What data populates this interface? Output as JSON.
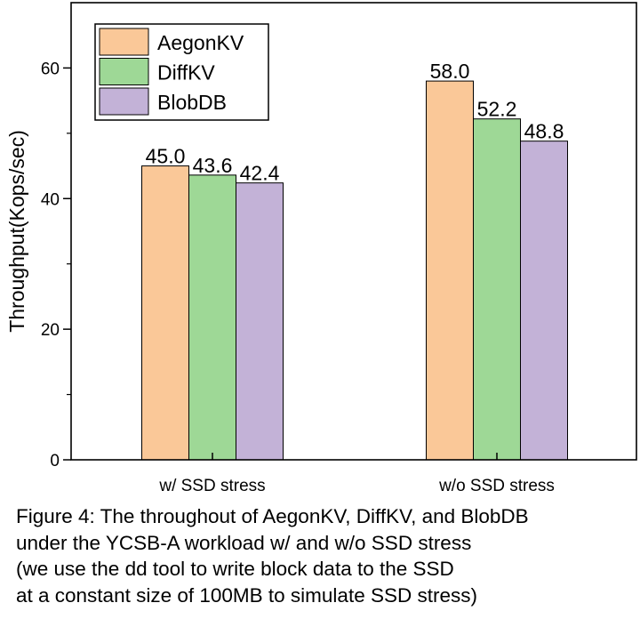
{
  "chart_data": {
    "type": "bar",
    "categories": [
      "w/ SSD stress",
      "w/o SSD stress"
    ],
    "series": [
      {
        "name": "AegonKV",
        "values": [
          45.0,
          58.0
        ],
        "color": "#fac898"
      },
      {
        "name": "DiffKV",
        "values": [
          43.6,
          52.2
        ],
        "color": "#9ed896"
      },
      {
        "name": "BlobDB",
        "values": [
          42.4,
          48.8
        ],
        "color": "#c3b2d7"
      }
    ],
    "data_labels": [
      [
        "45.0",
        "43.6",
        "42.4"
      ],
      [
        "58.0",
        "52.2",
        "48.8"
      ]
    ],
    "title": "",
    "xlabel": "",
    "ylabel": "Throughput(Kops/sec)",
    "ylim": [
      0,
      70
    ],
    "yticks": [
      0,
      20,
      40,
      60
    ],
    "legend_position": "top-left",
    "grid": false
  },
  "caption": {
    "lines": [
      "Figure 4: The throughout of AegonKV, DiffKV, and BlobDB",
      "under the YCSB-A workload w/ and w/o SSD stress",
      "(we use the dd tool to write block data to the SSD",
      "at a constant size of 100MB to simulate SSD stress)"
    ]
  }
}
